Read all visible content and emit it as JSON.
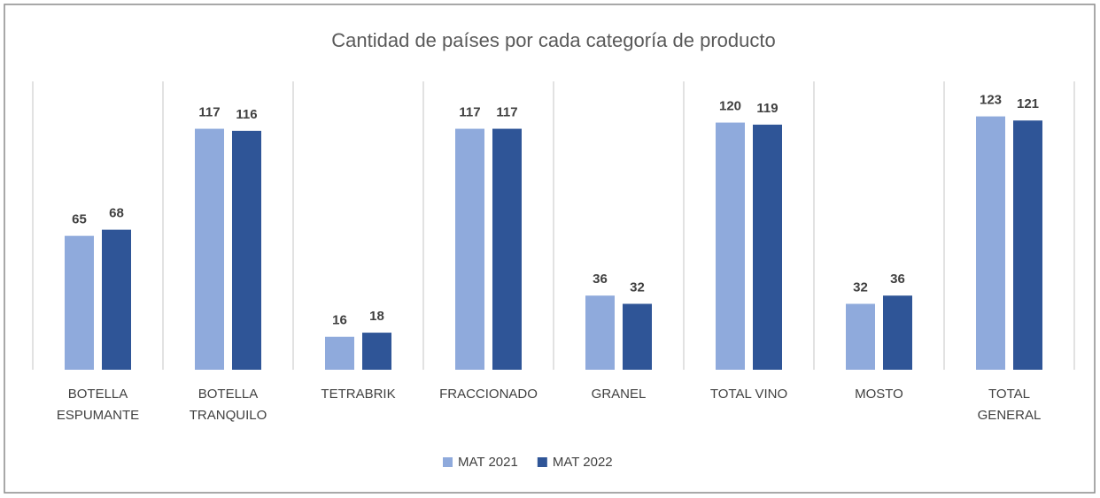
{
  "chart_data": {
    "type": "bar",
    "title": "Cantidad de países por cada categoría de producto",
    "categories": [
      "BOTELLA ESPUMANTE",
      "BOTELLA TRANQUILO",
      "TETRABRIK",
      "FRACCIONADO",
      "GRANEL",
      "TOTAL VINO",
      "MOSTO",
      "TOTAL GENERAL"
    ],
    "series": [
      {
        "name": "MAT 2021",
        "color": "#8faadc",
        "values": [
          65,
          117,
          16,
          117,
          36,
          120,
          32,
          123
        ]
      },
      {
        "name": "MAT 2022",
        "color": "#2f5597",
        "values": [
          68,
          116,
          18,
          117,
          32,
          119,
          36,
          121
        ]
      }
    ],
    "ylim": [
      0,
      140
    ],
    "legend": "bottom"
  }
}
